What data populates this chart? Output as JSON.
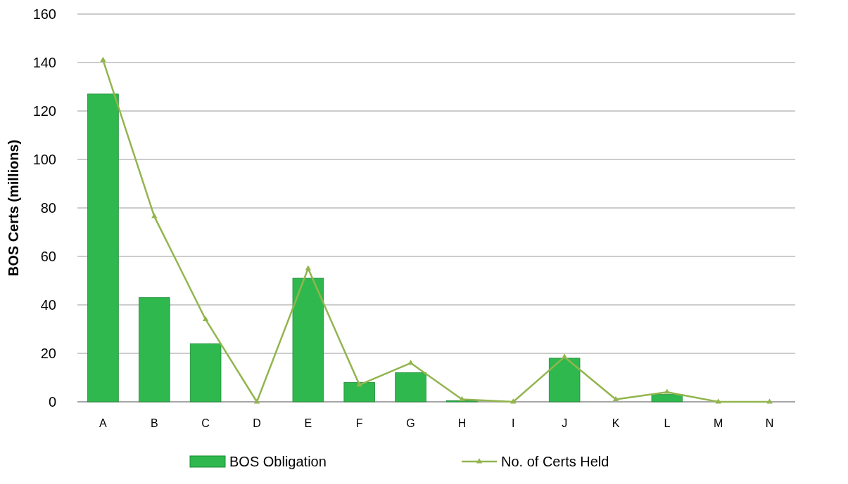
{
  "chart_data": {
    "type": "bar",
    "ylabel": "BOS Certs (millions)",
    "categories": [
      "A",
      "B",
      "C",
      "D",
      "E",
      "F",
      "G",
      "H",
      "I",
      "J",
      "K",
      "L",
      "M",
      "N"
    ],
    "series": [
      {
        "name": "BOS Obligation",
        "color": "#2fb84e",
        "values": [
          127,
          43,
          24,
          0,
          51,
          8,
          12,
          0.5,
          0,
          18,
          0,
          3,
          0,
          0
        ]
      },
      {
        "name": "No. of Certs Held",
        "type": "line",
        "color": "#92b54e",
        "marker": "triangle",
        "values": [
          141,
          76.5,
          34,
          0,
          55,
          7,
          16,
          1,
          0,
          18.5,
          1,
          4,
          0,
          0
        ]
      }
    ],
    "ylim": [
      0,
      160
    ],
    "yticks": [
      0,
      20,
      40,
      60,
      80,
      100,
      120,
      140,
      160
    ],
    "grid": "y",
    "legend": "bottom"
  }
}
